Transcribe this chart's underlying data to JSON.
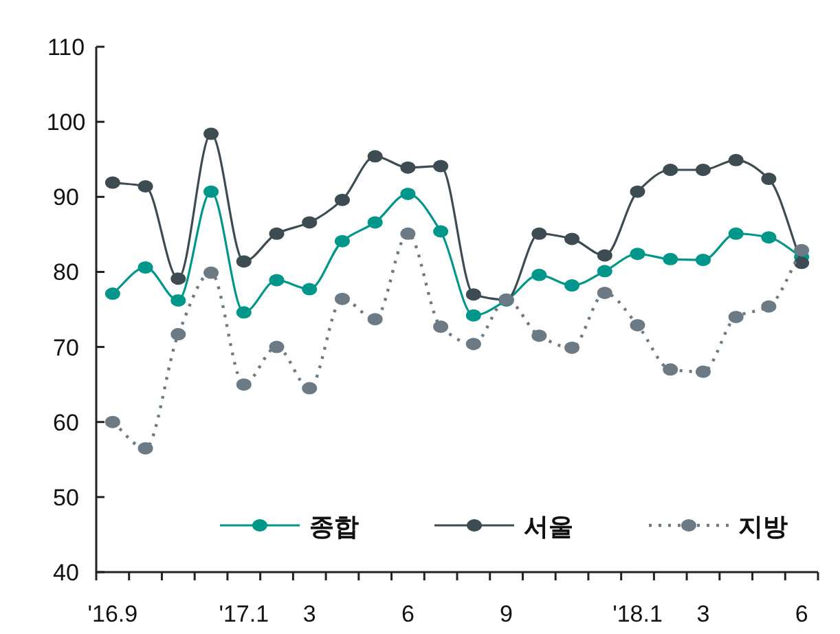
{
  "chart_data": {
    "type": "line",
    "categories": [
      "'16.9",
      null,
      null,
      null,
      "'17.1",
      null,
      "3",
      null,
      null,
      "6",
      null,
      null,
      "9",
      null,
      null,
      null,
      "'18.1",
      null,
      "3",
      null,
      null,
      "6"
    ],
    "series": [
      {
        "name": "종합",
        "color": "#00968a",
        "line_style": "solid",
        "values": [
          77.1,
          80.6,
          76.2,
          90.7,
          74.6,
          78.9,
          77.7,
          84.1,
          86.6,
          90.4,
          85.4,
          74.2,
          76.2,
          79.6,
          78.2,
          80.1,
          82.4,
          81.7,
          81.6,
          85.1,
          84.6,
          82.0
        ]
      },
      {
        "name": "서울",
        "color": "#3d4b52",
        "line_style": "solid",
        "values": [
          91.9,
          91.4,
          79.1,
          98.4,
          81.4,
          85.1,
          86.6,
          89.6,
          95.4,
          93.9,
          94.1,
          77.0,
          76.3,
          85.1,
          84.4,
          82.2,
          90.7,
          93.6,
          93.6,
          94.9,
          92.4,
          81.2
        ]
      },
      {
        "name": "지방",
        "color": "#6b7a84",
        "line_style": "dotted",
        "values": [
          60.0,
          56.5,
          71.7,
          79.9,
          65.0,
          70.0,
          64.5,
          76.4,
          73.7,
          85.1,
          72.7,
          70.4,
          76.3,
          71.5,
          69.9,
          77.2,
          72.9,
          67.0,
          66.7,
          74.0,
          75.4,
          82.9
        ]
      }
    ],
    "marker": "circle",
    "ylim": [
      40,
      110
    ],
    "yticks": [
      40,
      50,
      60,
      70,
      80,
      90,
      100,
      110
    ],
    "grid": false,
    "legend": "bottom"
  }
}
